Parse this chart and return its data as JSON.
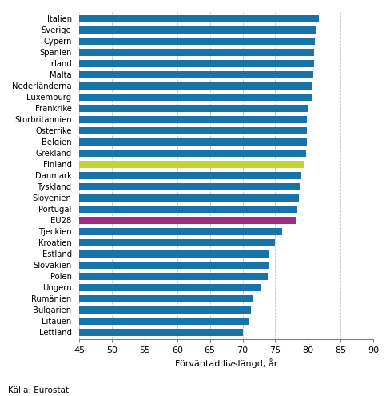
{
  "countries": [
    "Lettland",
    "Litauen",
    "Bulgarien",
    "Rumänien",
    "Ungern",
    "Polen",
    "Slovakien",
    "Estland",
    "Kroatien",
    "Tjeckien",
    "EU28",
    "Portugal",
    "Slovenien",
    "Tyskland",
    "Danmark",
    "Finland",
    "Grekland",
    "Belgien",
    "Österrike",
    "Storbritannien",
    "Frankrike",
    "Luxemburg",
    "Nederländerna",
    "Malta",
    "Irland",
    "Spanien",
    "Cypern",
    "Sverige",
    "Italien"
  ],
  "values": [
    70.1,
    71.0,
    71.3,
    71.5,
    72.7,
    73.8,
    74.0,
    74.1,
    74.9,
    76.1,
    78.2,
    78.4,
    78.6,
    78.7,
    79.0,
    79.3,
    79.7,
    79.8,
    79.9,
    79.9,
    80.1,
    80.6,
    80.7,
    80.8,
    80.9,
    81.0,
    81.1,
    81.3,
    81.7
  ],
  "xlabel": "Förväntad livslängd, år",
  "xlim": [
    45,
    90
  ],
  "xticks": [
    45,
    50,
    55,
    60,
    65,
    70,
    75,
    80,
    85,
    90
  ],
  "source": "Källa: Eurostat",
  "background_color": "#ffffff",
  "grid_color": "#c0c0c0",
  "blue_color": "#1874a8",
  "finland_color": "#c5d430",
  "eu28_color": "#9b2c7e"
}
